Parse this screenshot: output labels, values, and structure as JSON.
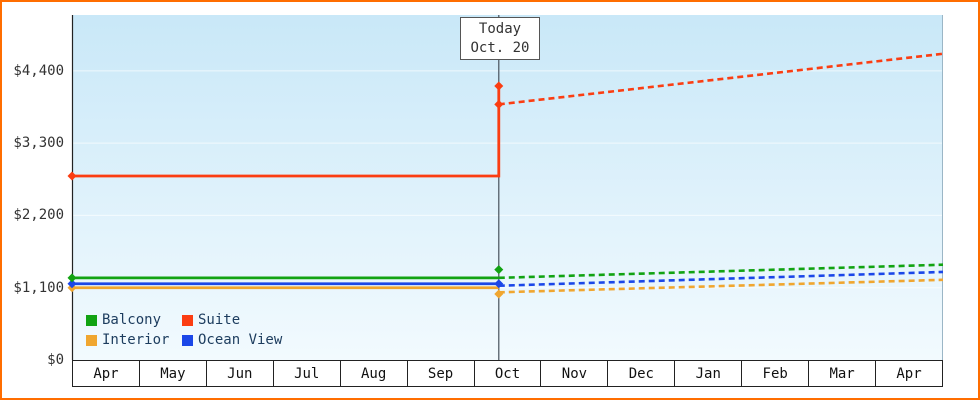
{
  "theme": {
    "frame_border": "#ff6d00",
    "plot_bg_top": "#c9e8f8",
    "plot_bg_bottom": "#f2fafe",
    "axis_color": "#222222",
    "today_line_color": "#47525c",
    "grid_color": "rgba(255,255,255,0.65)",
    "text_color": "#333333"
  },
  "chart_data": {
    "type": "line",
    "title": "",
    "xlabel": "",
    "ylabel": "",
    "ylim": [
      0,
      5250
    ],
    "y_ticks": [
      {
        "value": 0,
        "label": "$0"
      },
      {
        "value": 1100,
        "label": "$1,100"
      },
      {
        "value": 2200,
        "label": "$2,200"
      },
      {
        "value": 3300,
        "label": "$3,300"
      },
      {
        "value": 4400,
        "label": "$4,400"
      }
    ],
    "x_months": [
      "Apr",
      "May",
      "Jun",
      "Jul",
      "Aug",
      "Sep",
      "Oct",
      "Nov",
      "Dec",
      "Jan",
      "Feb",
      "Mar",
      "Apr"
    ],
    "today": {
      "label": "Today",
      "date": "Oct. 20",
      "x_frac": 0.49
    },
    "legend_position": "bottom-left",
    "legend": [
      {
        "label": "Balcony",
        "color": "#12a312"
      },
      {
        "label": "Suite",
        "color": "#fb3d12"
      },
      {
        "label": "Interior",
        "color": "#f0a630"
      },
      {
        "label": "Ocean View",
        "color": "#1b47e8"
      }
    ],
    "series": [
      {
        "name": "Balcony",
        "color": "#12a312",
        "solid": [
          [
            0,
            1250
          ],
          [
            0.49,
            1250
          ]
        ],
        "markers": [
          [
            0,
            1250
          ],
          [
            0.49,
            1375
          ]
        ],
        "dashed": [
          [
            0.49,
            1250
          ],
          [
            1,
            1450
          ]
        ]
      },
      {
        "name": "Suite",
        "color": "#fb3d12",
        "solid": [
          [
            0,
            2800
          ],
          [
            0.49,
            2800
          ],
          [
            0.49,
            4170
          ]
        ],
        "markers": [
          [
            0,
            2800
          ],
          [
            0.49,
            4170
          ],
          [
            0.49,
            3890
          ]
        ],
        "dashed": [
          [
            0.49,
            3890
          ],
          [
            1,
            4660
          ]
        ]
      },
      {
        "name": "Interior",
        "color": "#f0a630",
        "solid": [
          [
            0,
            1100
          ],
          [
            0.49,
            1100
          ]
        ],
        "markers": [
          [
            0,
            1100
          ],
          [
            0.49,
            1005
          ]
        ],
        "dashed": [
          [
            0.49,
            1030
          ],
          [
            1,
            1220
          ]
        ]
      },
      {
        "name": "Ocean View",
        "color": "#1b47e8",
        "solid": [
          [
            0,
            1160
          ],
          [
            0.49,
            1160
          ]
        ],
        "markers": [
          [
            0,
            1160
          ],
          [
            0.49,
            1160
          ]
        ],
        "dashed": [
          [
            0.49,
            1130
          ],
          [
            1,
            1340
          ]
        ]
      }
    ]
  }
}
